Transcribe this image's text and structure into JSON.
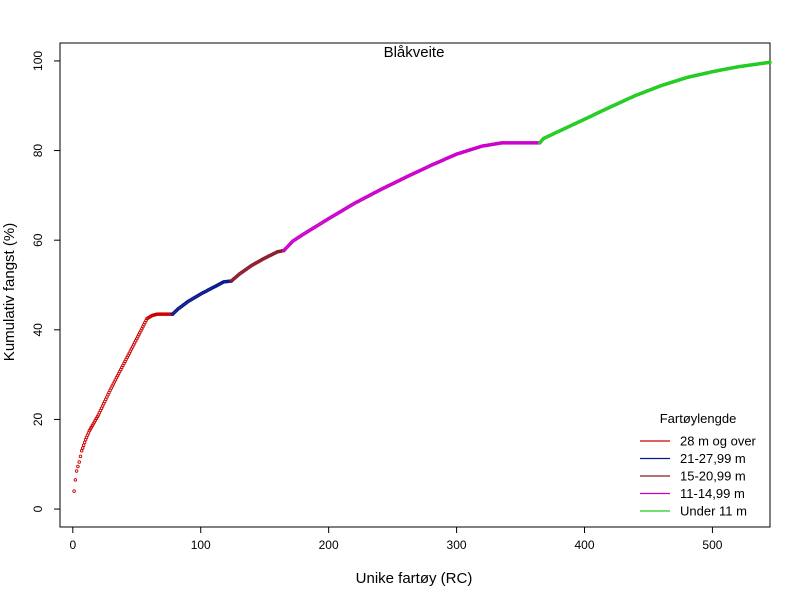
{
  "chart_data": {
    "type": "line",
    "title": "Blåkveite",
    "xlabel": "Unike fartøy (RC)",
    "ylabel": "Kumulativ fangst (%)",
    "xlim": [
      -10,
      545
    ],
    "ylim": [
      -4,
      104
    ],
    "x_ticks": [
      0,
      100,
      200,
      300,
      400,
      500
    ],
    "y_ticks": [
      0,
      20,
      40,
      60,
      80,
      100
    ],
    "grid": false,
    "legend": {
      "title": "Fartøylengde",
      "placement": "bottom-right"
    },
    "series": [
      {
        "name": "28 m og over",
        "color": "#cc0000",
        "points": [
          [
            1,
            4
          ],
          [
            2,
            6.5
          ],
          [
            3,
            8.5
          ],
          [
            5,
            10.5
          ],
          [
            7,
            13
          ],
          [
            10,
            15.5
          ],
          [
            13,
            17.5
          ],
          [
            16,
            19
          ],
          [
            20,
            21
          ],
          [
            25,
            24
          ],
          [
            30,
            27
          ],
          [
            40,
            32.5
          ],
          [
            50,
            38
          ],
          [
            58,
            42.5
          ],
          [
            62,
            43.2
          ],
          [
            66,
            43.5
          ],
          [
            72,
            43.5
          ],
          [
            78,
            43.5
          ]
        ]
      },
      {
        "name": "21-27,99 m",
        "color": "#0a1a8c",
        "points": [
          [
            78,
            43.5
          ],
          [
            82,
            44.6
          ],
          [
            90,
            46.3
          ],
          [
            100,
            48
          ],
          [
            110,
            49.5
          ],
          [
            118,
            50.7
          ],
          [
            124,
            50.9
          ]
        ]
      },
      {
        "name": "15-20,99 m",
        "color": "#8b1a2b",
        "points": [
          [
            124,
            50.9
          ],
          [
            130,
            52.4
          ],
          [
            140,
            54.4
          ],
          [
            150,
            56
          ],
          [
            160,
            57.4
          ],
          [
            165,
            57.7
          ]
        ]
      },
      {
        "name": "11-14,99 m",
        "color": "#cc00cc",
        "points": [
          [
            165,
            57.7
          ],
          [
            172,
            59.8
          ],
          [
            180,
            61.3
          ],
          [
            200,
            64.8
          ],
          [
            220,
            68.2
          ],
          [
            240,
            71.2
          ],
          [
            260,
            74
          ],
          [
            280,
            76.7
          ],
          [
            300,
            79.2
          ],
          [
            320,
            81
          ],
          [
            335,
            81.7
          ],
          [
            350,
            81.7
          ],
          [
            365,
            81.7
          ]
        ]
      },
      {
        "name": "Under 11 m",
        "color": "#22cc22",
        "points": [
          [
            365,
            81.7
          ],
          [
            368,
            82.7
          ],
          [
            380,
            84.3
          ],
          [
            400,
            87
          ],
          [
            420,
            89.7
          ],
          [
            440,
            92.3
          ],
          [
            460,
            94.5
          ],
          [
            480,
            96.3
          ],
          [
            500,
            97.6
          ],
          [
            520,
            98.7
          ],
          [
            545,
            99.7
          ]
        ]
      }
    ]
  }
}
